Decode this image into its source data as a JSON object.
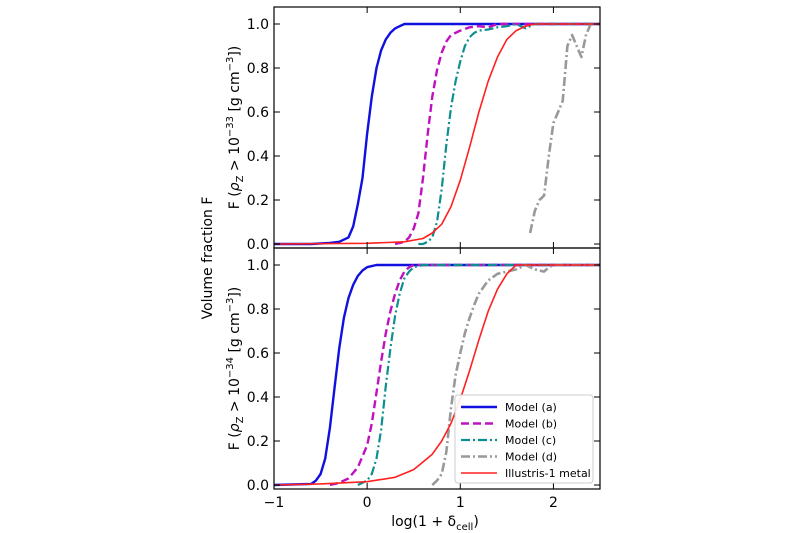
{
  "figure": {
    "ylabel_outer": "Volume fraction F",
    "xlabel_text": "log(1 + δ",
    "xlabel_sub": "cell",
    "xlabel_close": ")"
  },
  "chart_data": [
    {
      "type": "line",
      "panel": "top",
      "ylabel": "F (ρ_Z > 10^-33 [g cm^-3])",
      "ylabel_parts": {
        "pre": "F (",
        "rho": "ρ",
        "rho_sub": "Z",
        "mid": " > 10",
        "exp": "−33",
        "post": " [g cm",
        "unit_exp": "−3",
        "close": "])"
      },
      "xlim": [
        -1,
        2.5
      ],
      "ylim": [
        0,
        1.05
      ],
      "x_ticks": [
        -1,
        0,
        1,
        2
      ],
      "y_ticks": [
        0.0,
        0.2,
        0.4,
        0.6,
        0.8,
        1.0
      ],
      "y_tick_labels": [
        "0.0",
        "0.2",
        "0.4",
        "0.6",
        "0.8",
        "1.0"
      ],
      "series": [
        {
          "name": "Model (a)",
          "color": "#1010e0",
          "dash": "solid",
          "width": 2.4,
          "x": [
            -1.0,
            -0.6,
            -0.4,
            -0.3,
            -0.2,
            -0.15,
            -0.1,
            -0.05,
            0.0,
            0.05,
            0.1,
            0.15,
            0.2,
            0.25,
            0.3,
            0.35,
            0.4,
            0.5,
            0.6,
            0.8,
            1.0,
            2.5
          ],
          "y": [
            0.0,
            0.0,
            0.005,
            0.01,
            0.03,
            0.08,
            0.18,
            0.3,
            0.5,
            0.67,
            0.8,
            0.88,
            0.93,
            0.96,
            0.98,
            0.99,
            1.0,
            1.0,
            1.0,
            1.0,
            1.0,
            1.0
          ]
        },
        {
          "name": "Model (b)",
          "color": "#c010c0",
          "dash": "dashed",
          "width": 2.4,
          "x": [
            0.3,
            0.4,
            0.45,
            0.5,
            0.55,
            0.6,
            0.65,
            0.7,
            0.75,
            0.8,
            0.85,
            0.9,
            1.0,
            1.1,
            1.2,
            1.3,
            1.4,
            1.5,
            2.5
          ],
          "y": [
            0.0,
            0.01,
            0.03,
            0.07,
            0.14,
            0.3,
            0.5,
            0.67,
            0.79,
            0.87,
            0.92,
            0.95,
            0.97,
            0.985,
            0.99,
            0.985,
            1.0,
            1.0,
            1.0
          ]
        },
        {
          "name": "Model (c)",
          "color": "#0e8f8f",
          "dash": "dashdot",
          "width": 2.2,
          "x": [
            0.55,
            0.6,
            0.65,
            0.7,
            0.75,
            0.8,
            0.85,
            0.9,
            0.95,
            1.0,
            1.05,
            1.1,
            1.15,
            1.2,
            1.3,
            1.4,
            1.5,
            1.6,
            1.7,
            1.8,
            2.5
          ],
          "y": [
            0.0,
            0.0,
            0.01,
            0.03,
            0.1,
            0.25,
            0.45,
            0.62,
            0.74,
            0.83,
            0.9,
            0.94,
            0.96,
            0.97,
            0.975,
            0.985,
            0.99,
            1.0,
            0.98,
            1.0,
            1.0
          ]
        },
        {
          "name": "Model (d)",
          "color": "#999999",
          "dash": "dashdot",
          "width": 2.6,
          "x": [
            1.75,
            1.8,
            1.85,
            1.9,
            1.95,
            2.0,
            2.05,
            2.1,
            2.15,
            2.2,
            2.25,
            2.3,
            2.35,
            2.4,
            2.5
          ],
          "y": [
            0.05,
            0.15,
            0.2,
            0.22,
            0.4,
            0.55,
            0.6,
            0.65,
            0.9,
            0.95,
            0.9,
            0.85,
            0.95,
            1.0,
            1.0
          ]
        },
        {
          "name": "Illustris-1 metal",
          "color": "#ff2020",
          "dash": "solid",
          "width": 1.6,
          "x": [
            -1.0,
            0.0,
            0.4,
            0.6,
            0.7,
            0.8,
            0.9,
            1.0,
            1.1,
            1.2,
            1.3,
            1.4,
            1.5,
            1.6,
            1.7,
            1.8,
            2.0,
            2.5
          ],
          "y": [
            0.0,
            0.003,
            0.01,
            0.025,
            0.05,
            0.09,
            0.17,
            0.29,
            0.44,
            0.6,
            0.74,
            0.85,
            0.93,
            0.97,
            0.99,
            1.0,
            1.0,
            1.0
          ]
        }
      ]
    },
    {
      "type": "line",
      "panel": "bottom",
      "ylabel": "F (ρ_Z > 10^-34 [g cm^-3])",
      "ylabel_parts": {
        "pre": "F (",
        "rho": "ρ",
        "rho_sub": "Z",
        "mid": " > 10",
        "exp": "−34",
        "post": " [g cm",
        "unit_exp": "−3",
        "close": "])"
      },
      "xlim": [
        -1,
        2.5
      ],
      "ylim": [
        0,
        1.05
      ],
      "x_ticks": [
        -1,
        0,
        1,
        2
      ],
      "x_tick_labels": [
        "−1",
        "0",
        "1",
        "2"
      ],
      "y_ticks": [
        0.0,
        0.2,
        0.4,
        0.6,
        0.8,
        1.0
      ],
      "y_tick_labels": [
        "0.0",
        "0.2",
        "0.4",
        "0.6",
        "0.8",
        "1.0"
      ],
      "legend": "lower right",
      "series": [
        {
          "name": "Model (a)",
          "color": "#1010e0",
          "dash": "solid",
          "width": 2.4,
          "x": [
            -1.0,
            -0.6,
            -0.55,
            -0.5,
            -0.45,
            -0.4,
            -0.35,
            -0.3,
            -0.25,
            -0.2,
            -0.15,
            -0.1,
            -0.05,
            0.0,
            0.05,
            0.1,
            0.2,
            0.3,
            2.5
          ],
          "y": [
            0.0,
            0.005,
            0.02,
            0.05,
            0.12,
            0.26,
            0.44,
            0.62,
            0.76,
            0.85,
            0.91,
            0.95,
            0.975,
            0.99,
            0.995,
            1.0,
            1.0,
            1.0,
            1.0
          ]
        },
        {
          "name": "Model (b)",
          "color": "#c010c0",
          "dash": "dashed",
          "width": 2.4,
          "x": [
            -0.4,
            -0.3,
            -0.2,
            -0.1,
            0.0,
            0.05,
            0.1,
            0.15,
            0.2,
            0.25,
            0.3,
            0.35,
            0.4,
            0.45,
            0.5,
            0.6,
            0.7,
            2.5
          ],
          "y": [
            0.0,
            0.01,
            0.03,
            0.08,
            0.18,
            0.28,
            0.42,
            0.56,
            0.69,
            0.79,
            0.87,
            0.93,
            0.97,
            0.99,
            1.0,
            1.0,
            1.0,
            1.0
          ]
        },
        {
          "name": "Model (c)",
          "color": "#0e8f8f",
          "dash": "dashdot",
          "width": 2.2,
          "x": [
            -0.1,
            0.0,
            0.05,
            0.1,
            0.15,
            0.2,
            0.25,
            0.3,
            0.35,
            0.4,
            0.45,
            0.5,
            0.6,
            0.7,
            2.5
          ],
          "y": [
            0.0,
            0.02,
            0.05,
            0.12,
            0.25,
            0.45,
            0.62,
            0.77,
            0.87,
            0.94,
            0.97,
            0.99,
            1.0,
            1.0,
            1.0
          ]
        },
        {
          "name": "Model (d)",
          "color": "#999999",
          "dash": "dashdot",
          "width": 2.6,
          "x": [
            0.7,
            0.75,
            0.8,
            0.85,
            0.9,
            0.95,
            1.0,
            1.05,
            1.1,
            1.15,
            1.2,
            1.3,
            1.4,
            1.5,
            1.6,
            1.7,
            1.8,
            1.9,
            1.95,
            2.0,
            2.5
          ],
          "y": [
            0.0,
            0.02,
            0.05,
            0.15,
            0.35,
            0.5,
            0.6,
            0.69,
            0.76,
            0.82,
            0.87,
            0.93,
            0.96,
            0.97,
            0.98,
            1.0,
            0.98,
            0.97,
            0.99,
            1.0,
            1.0
          ]
        },
        {
          "name": "Illustris-1 metal",
          "color": "#ff2020",
          "dash": "solid",
          "width": 1.6,
          "x": [
            -1.0,
            -0.5,
            0.0,
            0.3,
            0.5,
            0.7,
            0.8,
            0.9,
            1.0,
            1.1,
            1.2,
            1.3,
            1.4,
            1.5,
            1.6,
            1.7,
            2.5
          ],
          "y": [
            0.0,
            0.005,
            0.015,
            0.035,
            0.07,
            0.14,
            0.2,
            0.28,
            0.39,
            0.52,
            0.66,
            0.79,
            0.89,
            0.96,
            1.0,
            1.0,
            1.0
          ]
        }
      ]
    }
  ]
}
